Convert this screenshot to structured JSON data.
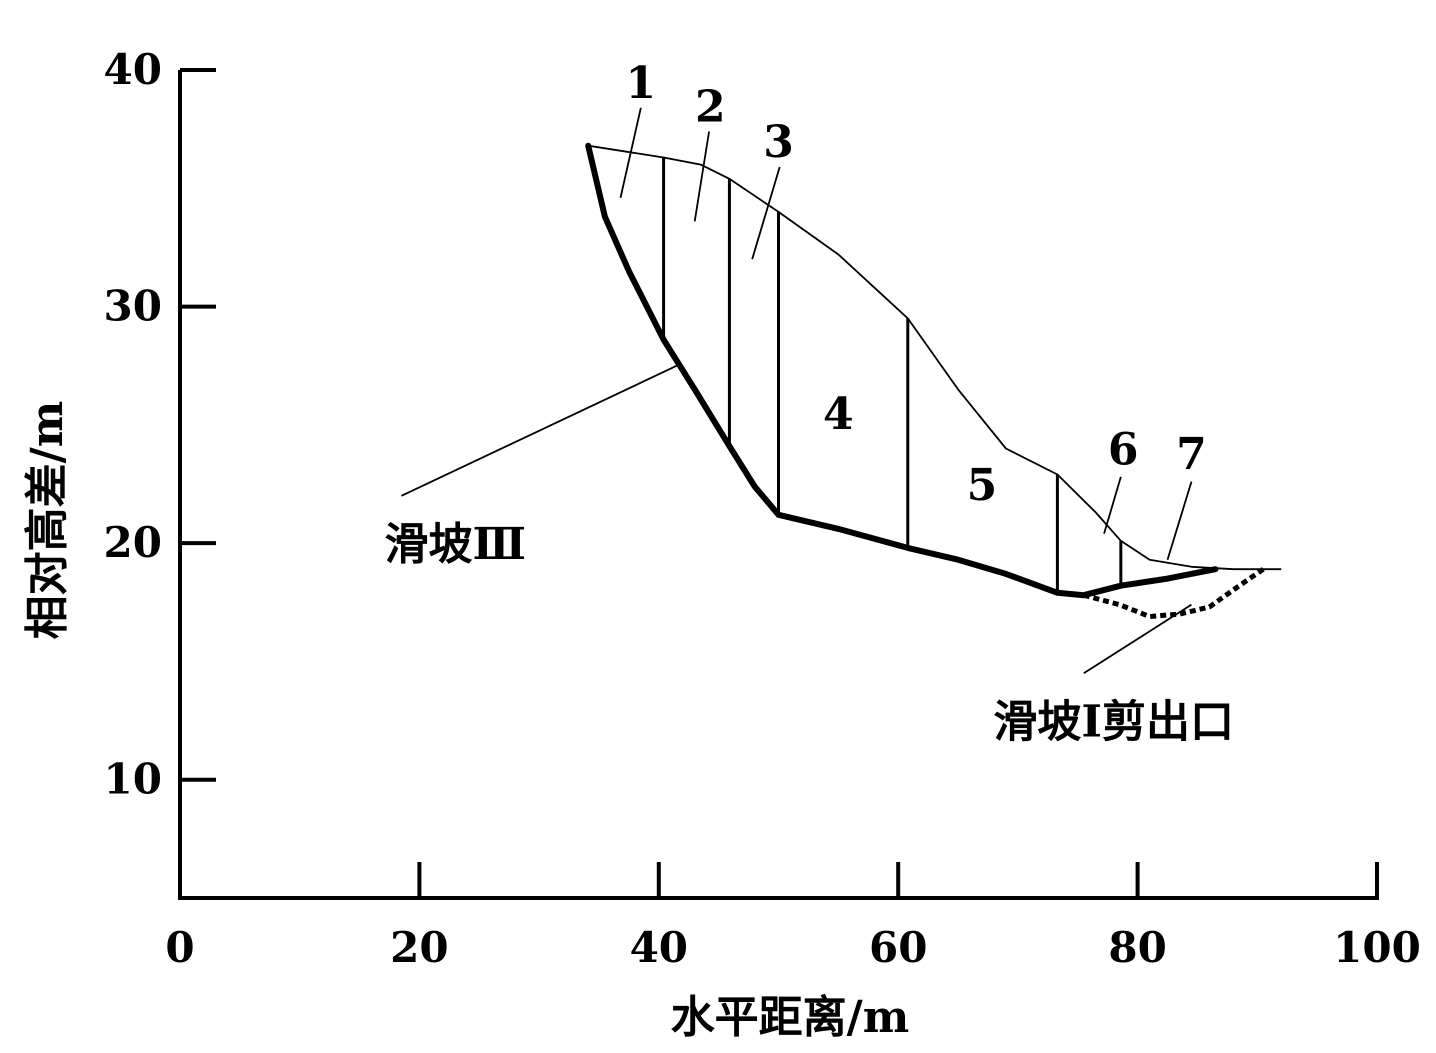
{
  "chart_data": {
    "type": "diagram",
    "xlabel": "水平距离/m",
    "ylabel": "相对高差/m",
    "x_ticks": [
      "0",
      "20",
      "40",
      "60",
      "80",
      "100"
    ],
    "y_ticks": [
      "10",
      "20",
      "30",
      "40"
    ],
    "xlim": [
      0,
      100
    ],
    "ylim": [
      5,
      40
    ],
    "ground_surface": [
      [
        34.1,
        36.8
      ],
      [
        40.4,
        36.3
      ],
      [
        43.5,
        36.0
      ],
      [
        45.9,
        35.4
      ],
      [
        50.0,
        34.0
      ],
      [
        55.0,
        32.2
      ],
      [
        60.8,
        29.5
      ],
      [
        65.0,
        26.5
      ],
      [
        69.0,
        24.0
      ],
      [
        73.3,
        22.9
      ],
      [
        76.5,
        21.3
      ],
      [
        78.6,
        20.1
      ],
      [
        81.0,
        19.3
      ],
      [
        84.5,
        19.0
      ],
      [
        88.0,
        18.9
      ],
      [
        92.0,
        18.9
      ]
    ],
    "slip_surface_III": [
      [
        34.1,
        36.8
      ],
      [
        35.5,
        33.8
      ],
      [
        37.5,
        31.5
      ],
      [
        40.4,
        28.6
      ],
      [
        43.0,
        26.5
      ],
      [
        45.9,
        24.1
      ],
      [
        48.0,
        22.4
      ],
      [
        50.0,
        21.2
      ],
      [
        55.0,
        20.6
      ],
      [
        60.8,
        19.8
      ],
      [
        65.0,
        19.3
      ],
      [
        69.0,
        18.7
      ],
      [
        73.3,
        17.9
      ],
      [
        75.5,
        17.8
      ],
      [
        78.6,
        18.2
      ],
      [
        82.5,
        18.5
      ],
      [
        86.5,
        18.9
      ]
    ],
    "slip_surface_I_exit": [
      [
        75.5,
        17.8
      ],
      [
        78.5,
        17.4
      ],
      [
        81.0,
        16.9
      ],
      [
        83.5,
        17.0
      ],
      [
        86.0,
        17.3
      ],
      [
        88.5,
        18.2
      ],
      [
        90.5,
        18.9
      ]
    ],
    "slice_boundaries_x": [
      40.4,
      45.9,
      50.0,
      60.8,
      73.3,
      78.6
    ],
    "slices": [
      {
        "label": "1",
        "x": 38.5,
        "y": 39.5
      },
      {
        "label": "2",
        "x": 44.3,
        "y": 38.5
      },
      {
        "label": "3",
        "x": 50.0,
        "y": 37.0
      },
      {
        "label": "4",
        "x": 55.0,
        "y": 25.5
      },
      {
        "label": "5",
        "x": 67.0,
        "y": 22.5
      },
      {
        "label": "6",
        "x": 78.8,
        "y": 24.0
      },
      {
        "label": "7",
        "x": 84.5,
        "y": 23.8
      }
    ],
    "annotations": [
      {
        "text": "滑坡Ⅲ",
        "text_at": [
          23.0,
          20.0
        ],
        "from": [
          18.5,
          22.0
        ],
        "to": [
          41.5,
          27.5
        ]
      },
      {
        "text": "滑坡Ⅰ剪出口",
        "text_at": [
          78.0,
          12.5
        ],
        "from": [
          75.5,
          14.5
        ],
        "to": [
          84.5,
          17.4
        ]
      }
    ]
  }
}
